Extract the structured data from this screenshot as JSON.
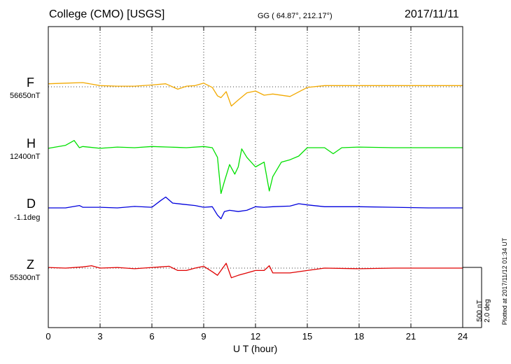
{
  "header": {
    "station": "College (CMO)  [USGS]",
    "coords": "GG ( 64.87°, 212.17°)",
    "date": "2017/11/11"
  },
  "footer": {
    "plotted_note": "Plotted at 2017/11/12 01:34 UT",
    "scale_label_1": "500 nT",
    "scale_label_2": "2.0 deg"
  },
  "colors": {
    "F": "#f2a900",
    "H": "#00e000",
    "D": "#0000dd",
    "Z": "#e00000"
  },
  "chart_data": {
    "type": "line",
    "xlabel": "U T (hour)",
    "xlim": [
      0,
      24
    ],
    "xticks": [
      "0",
      "3",
      "6",
      "9",
      "12",
      "15",
      "18",
      "21",
      "24"
    ],
    "vertical_grid": true,
    "scale_bar": {
      "nT": 500,
      "deg": 2.0
    },
    "series": [
      {
        "name": "F",
        "baseline_label": "56650nT",
        "baseline_dotted": true,
        "x": [
          0,
          1,
          2,
          3,
          4,
          5,
          6,
          6.8,
          7.5,
          8,
          8.5,
          9,
          9.5,
          9.8,
          10,
          10.3,
          10.6,
          11,
          11.5,
          12,
          12.5,
          13,
          14,
          15,
          16,
          18,
          20,
          22,
          24
        ],
        "values": [
          25,
          30,
          35,
          10,
          5,
          5,
          15,
          25,
          -20,
          5,
          10,
          30,
          -5,
          -75,
          -90,
          -40,
          -160,
          -110,
          -50,
          -35,
          -70,
          -60,
          -80,
          -5,
          10,
          10,
          10,
          10,
          10
        ]
      },
      {
        "name": "H",
        "baseline_label": "12400nT",
        "baseline_dotted": false,
        "x": [
          0,
          1,
          1.5,
          1.8,
          2,
          3,
          4,
          5,
          6,
          7,
          8,
          9,
          9.5,
          9.8,
          10,
          10.2,
          10.5,
          10.8,
          11,
          11.2,
          11.5,
          12,
          12.5,
          12.8,
          13,
          13.5,
          14,
          14.5,
          15,
          16,
          16.5,
          17,
          18,
          20,
          22,
          24
        ],
        "values": [
          -5,
          20,
          60,
          0,
          10,
          -5,
          5,
          0,
          10,
          5,
          0,
          10,
          0,
          -80,
          -380,
          -280,
          -140,
          -220,
          -160,
          -10,
          -80,
          -160,
          -120,
          -360,
          -240,
          -120,
          -100,
          -70,
          0,
          0,
          -50,
          0,
          5,
          0,
          0,
          0
        ]
      },
      {
        "name": "D",
        "baseline_label": "-1.1deg",
        "baseline_dotted": false,
        "x": [
          0,
          1,
          1.8,
          2,
          3,
          4,
          5,
          6,
          6.5,
          6.8,
          7.2,
          7.8,
          8.5,
          9,
          9.5,
          9.8,
          10,
          10.2,
          10.5,
          11,
          11.5,
          12,
          12.5,
          13,
          14,
          14.5,
          15,
          16,
          18,
          20,
          22,
          24
        ],
        "values": [
          0,
          0,
          0.08,
          0.02,
          0.02,
          0,
          0.05,
          0.02,
          0.24,
          0.36,
          0.16,
          0.12,
          0.08,
          0.02,
          0.04,
          -0.24,
          -0.36,
          -0.12,
          -0.08,
          -0.12,
          -0.08,
          0.04,
          0.02,
          0.04,
          0.06,
          0.14,
          0.1,
          0.04,
          0.04,
          0.02,
          0,
          0
        ]
      },
      {
        "name": "Z",
        "baseline_label": "55300nT",
        "baseline_dotted": true,
        "x": [
          0,
          1,
          2,
          2.5,
          3,
          4,
          5,
          6,
          6.5,
          7,
          7.5,
          8,
          8.5,
          9,
          9.5,
          9.8,
          10,
          10.3,
          10.6,
          11,
          11.5,
          12,
          12.5,
          12.8,
          13,
          14,
          15,
          16,
          18,
          20,
          22,
          24
        ],
        "values": [
          5,
          0,
          10,
          20,
          0,
          5,
          -5,
          5,
          10,
          15,
          -20,
          -20,
          0,
          15,
          -30,
          -60,
          -20,
          40,
          -80,
          -60,
          -40,
          -20,
          -20,
          20,
          -40,
          -40,
          -20,
          0,
          -5,
          0,
          0,
          0
        ]
      }
    ]
  }
}
